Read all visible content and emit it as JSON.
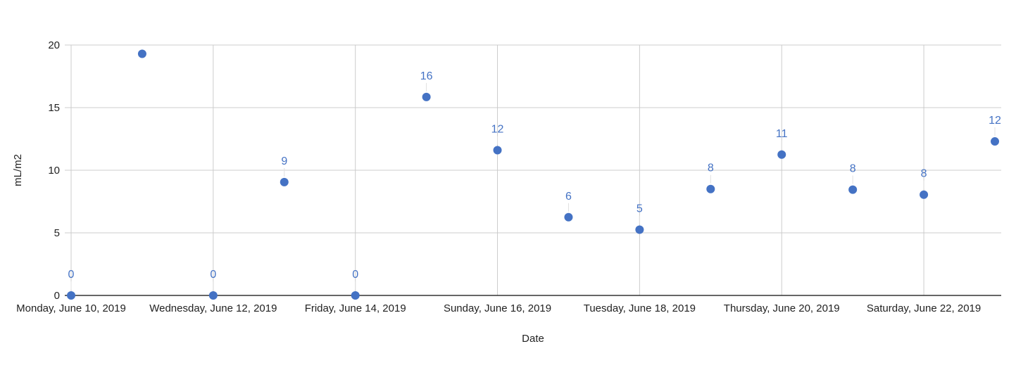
{
  "chart_data": {
    "type": "scatter",
    "xlabel": "Date",
    "ylabel": "mL/m2",
    "ylim": [
      0,
      20
    ],
    "yticks": [
      0,
      5,
      10,
      15,
      20
    ],
    "x_tick_dates": [
      "2019-06-10",
      "2019-06-12",
      "2019-06-14",
      "2019-06-16",
      "2019-06-18",
      "2019-06-20",
      "2019-06-22"
    ],
    "x_tick_labels": [
      "Monday, June 10, 2019",
      "Wednesday, June 12, 2019",
      "Friday, June 14, 2019",
      "Sunday, June 16, 2019",
      "Tuesday, June 18, 2019",
      "Thursday, June 20, 2019",
      "Saturday, June 22, 2019"
    ],
    "xlim": [
      "2019-06-10",
      "2019-06-23"
    ],
    "grid": true,
    "marker_color": "#4472c4",
    "series": [
      {
        "points": [
          {
            "x": "2019-06-10",
            "y": 0,
            "label": "0"
          },
          {
            "x": "2019-06-11",
            "y": 19.3,
            "label": ""
          },
          {
            "x": "2019-06-12",
            "y": 0,
            "label": "0"
          },
          {
            "x": "2019-06-13",
            "y": 9.05,
            "label": "9"
          },
          {
            "x": "2019-06-14",
            "y": 0,
            "label": "0"
          },
          {
            "x": "2019-06-15",
            "y": 15.85,
            "label": "16"
          },
          {
            "x": "2019-06-16",
            "y": 11.6,
            "label": "12"
          },
          {
            "x": "2019-06-17",
            "y": 6.25,
            "label": "6"
          },
          {
            "x": "2019-06-18",
            "y": 5.25,
            "label": "5"
          },
          {
            "x": "2019-06-19",
            "y": 8.5,
            "label": "8"
          },
          {
            "x": "2019-06-20",
            "y": 11.25,
            "label": "11"
          },
          {
            "x": "2019-06-21",
            "y": 8.45,
            "label": "8"
          },
          {
            "x": "2019-06-22",
            "y": 8.05,
            "label": "8"
          },
          {
            "x": "2019-06-23",
            "y": 12.3,
            "label": "12"
          }
        ]
      }
    ]
  }
}
